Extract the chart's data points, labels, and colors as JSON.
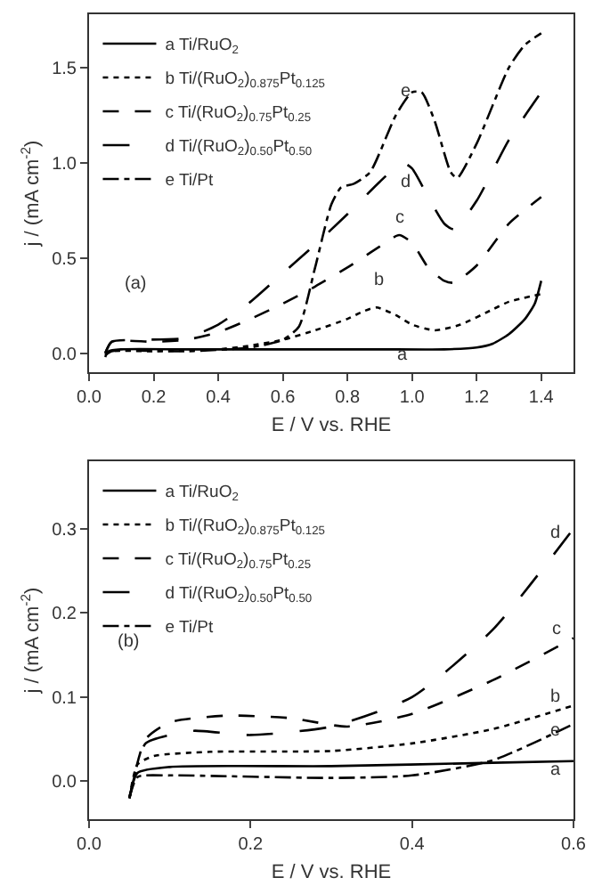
{
  "chart_data": [
    {
      "type": "line",
      "xlabel": "E / V vs. RHE",
      "ylabel": "j / (mA cm$^{-2}$)",
      "xlim": [
        0,
        1.5
      ],
      "ylim": [
        -0.1,
        1.78
      ],
      "xticks": [
        {
          "value": 0,
          "label": "0.0"
        },
        {
          "value": 0.2,
          "label": "0.2"
        },
        {
          "value": 0.4,
          "label": "0.4"
        },
        {
          "value": 0.6,
          "label": "0.6"
        },
        {
          "value": 0.8,
          "label": "0.8"
        },
        {
          "value": 1,
          "label": "1.0"
        },
        {
          "value": 1.2,
          "label": "1.2"
        },
        {
          "value": 1.4,
          "label": "1.4"
        }
      ],
      "yticks": [
        {
          "value": 0,
          "label": "0.0"
        },
        {
          "value": 0.5,
          "label": "0.5"
        },
        {
          "value": 1,
          "label": "1.0"
        },
        {
          "value": 1.5,
          "label": "1.5"
        }
      ],
      "grid": false,
      "legend": "top left",
      "marker": "none",
      "annotations": [
        "(a)",
        "a",
        "b",
        "c",
        "d",
        "e"
      ],
      "series": [
        {
          "name": "a Ti/RuO$_{2}$",
          "color": "#000000",
          "line_style": "solid",
          "x": [
            0.05,
            0.06,
            0.1,
            0.3,
            0.6,
            0.9,
            1.1,
            1.2,
            1.25,
            1.3,
            1.35,
            1.38,
            1.4
          ],
          "values": [
            -0.02,
            0.01,
            0.02,
            0.02,
            0.02,
            0.02,
            0.02,
            0.03,
            0.05,
            0.1,
            0.18,
            0.26,
            0.38
          ]
        },
        {
          "name": "b Ti/(RuO$_{2}$)$_{0.875}$Pt$_{0.125}$",
          "color": "#000000",
          "line_style": "dotted",
          "x": [
            0.05,
            0.07,
            0.2,
            0.4,
            0.5,
            0.6,
            0.7,
            0.8,
            0.85,
            0.89,
            0.95,
            1.0,
            1.07,
            1.15,
            1.25,
            1.3,
            1.4
          ],
          "values": [
            -0.01,
            0.01,
            0.01,
            0.02,
            0.04,
            0.07,
            0.12,
            0.18,
            0.22,
            0.24,
            0.2,
            0.15,
            0.12,
            0.15,
            0.23,
            0.27,
            0.31
          ]
        },
        {
          "name": "c Ti/(RuO$_{2}$)$_{0.75}$Pt$_{0.25}$",
          "color": "#000000",
          "line_style": "dashed",
          "x": [
            0.05,
            0.07,
            0.2,
            0.3,
            0.4,
            0.5,
            0.6,
            0.7,
            0.8,
            0.9,
            0.96,
            1.0,
            1.05,
            1.1,
            1.13,
            1.2,
            1.3,
            1.4
          ],
          "values": [
            0,
            0.06,
            0.06,
            0.07,
            0.11,
            0.18,
            0.26,
            0.35,
            0.45,
            0.56,
            0.62,
            0.58,
            0.45,
            0.38,
            0.37,
            0.46,
            0.68,
            0.82
          ]
        },
        {
          "name": "d Ti/(RuO$_{2}$)$_{0.50}$Pt$_{0.50}$",
          "color": "#000000",
          "line_style": "longdash",
          "x": [
            0.05,
            0.07,
            0.15,
            0.3,
            0.4,
            0.5,
            0.6,
            0.7,
            0.8,
            0.9,
            0.97,
            1.0,
            1.05,
            1.1,
            1.13,
            1.2,
            1.3,
            1.4
          ],
          "values": [
            0,
            0.06,
            0.07,
            0.08,
            0.15,
            0.27,
            0.42,
            0.57,
            0.73,
            0.9,
            1.0,
            0.97,
            0.82,
            0.68,
            0.65,
            0.8,
            1.12,
            1.37
          ]
        },
        {
          "name": "e Ti/Pt",
          "color": "#000000",
          "line_style": "dashdot",
          "x": [
            0.05,
            0.07,
            0.3,
            0.5,
            0.6,
            0.65,
            0.7,
            0.75,
            0.78,
            0.82,
            0.87,
            0.95,
            1.0,
            1.03,
            1.07,
            1.12,
            1.14,
            1.2,
            1.3,
            1.35,
            1.4
          ],
          "values": [
            -0.01,
            0.01,
            0.01,
            0.03,
            0.07,
            0.14,
            0.45,
            0.78,
            0.87,
            0.89,
            0.95,
            1.25,
            1.37,
            1.37,
            1.22,
            0.95,
            0.92,
            1.1,
            1.5,
            1.62,
            1.68
          ]
        }
      ]
    },
    {
      "type": "line",
      "xlabel": "E / V vs. RHE",
      "ylabel": "j / (mA cm$^{-2}$)",
      "xlim": [
        0,
        0.6
      ],
      "ylim": [
        -0.045,
        0.38
      ],
      "xticks": [
        {
          "value": 0,
          "label": "0.0"
        },
        {
          "value": 0.2,
          "label": "0.2"
        },
        {
          "value": 0.4,
          "label": "0.4"
        },
        {
          "value": 0.6,
          "label": "0.6"
        }
      ],
      "yticks": [
        {
          "value": 0,
          "label": "0.0"
        },
        {
          "value": 0.1,
          "label": "0.1"
        },
        {
          "value": 0.2,
          "label": "0.2"
        },
        {
          "value": 0.3,
          "label": "0.3"
        }
      ],
      "grid": false,
      "legend": "top left",
      "marker": "none",
      "annotations": [
        "(b)",
        "a",
        "b",
        "c",
        "d",
        "e"
      ],
      "series": [
        {
          "name": "a Ti/RuO$_{2}$",
          "color": "#000000",
          "line_style": "solid",
          "x": [
            0.05,
            0.06,
            0.1,
            0.3,
            0.5,
            0.6
          ],
          "values": [
            -0.02,
            0.01,
            0.017,
            0.018,
            0.022,
            0.024
          ]
        },
        {
          "name": "b Ti/(RuO$_{2}$)$_{0.875}$Pt$_{0.125}$",
          "color": "#000000",
          "line_style": "dotted",
          "x": [
            0.05,
            0.06,
            0.08,
            0.15,
            0.3,
            0.4,
            0.5,
            0.6
          ],
          "values": [
            -0.02,
            0.02,
            0.03,
            0.035,
            0.036,
            0.045,
            0.062,
            0.09
          ]
        },
        {
          "name": "c Ti/(RuO$_{2}$)$_{0.75}$Pt$_{0.25}$",
          "color": "#000000",
          "line_style": "dashed",
          "x": [
            0.05,
            0.07,
            0.1,
            0.17,
            0.25,
            0.32,
            0.4,
            0.5,
            0.6
          ],
          "values": [
            -0.02,
            0.05,
            0.07,
            0.078,
            0.075,
            0.065,
            0.08,
            0.12,
            0.17
          ]
        },
        {
          "name": "d Ti/(RuO$_{2}$)$_{0.50}$Pt$_{0.50}$",
          "color": "#000000",
          "line_style": "longdash",
          "x": [
            0.05,
            0.07,
            0.1,
            0.13,
            0.2,
            0.3,
            0.4,
            0.5,
            0.6
          ],
          "values": [
            -0.02,
            0.045,
            0.055,
            0.06,
            0.055,
            0.065,
            0.1,
            0.18,
            0.3
          ]
        },
        {
          "name": "e Ti/Pt",
          "color": "#000000",
          "line_style": "dashdot",
          "x": [
            0.05,
            0.06,
            0.1,
            0.3,
            0.4,
            0.5,
            0.6
          ],
          "values": [
            -0.02,
            0.005,
            0.007,
            0.004,
            0.007,
            0.025,
            0.068
          ]
        }
      ]
    }
  ]
}
